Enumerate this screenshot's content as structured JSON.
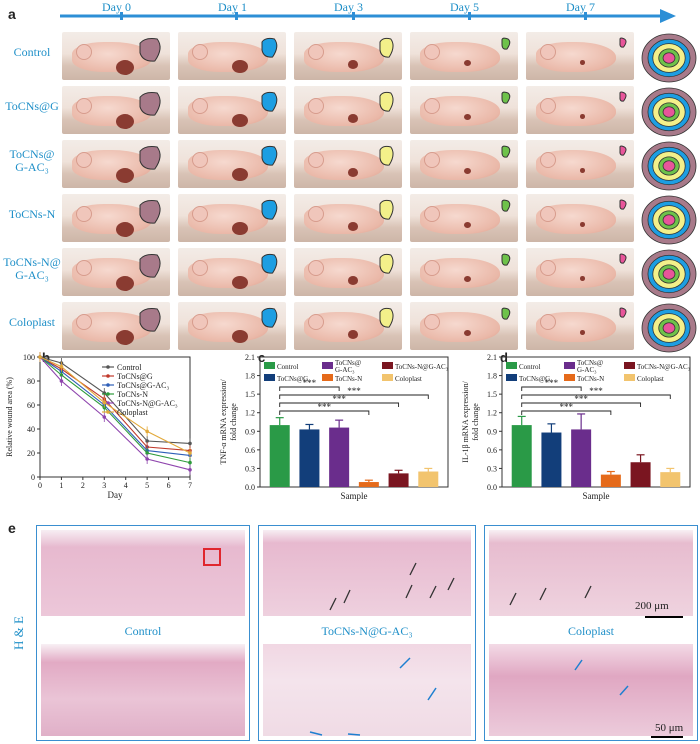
{
  "panels": {
    "a": "a",
    "b": "b",
    "c": "c",
    "d": "d",
    "e": "e"
  },
  "days": [
    "Day 0",
    "Day 1",
    "Day 3",
    "Day 5",
    "Day 7"
  ],
  "rows": [
    "Control",
    "ToCNs@G",
    "ToCNs@\nG-AC₃",
    "ToCNs-N",
    "ToCNs-N@\nG-AC₃",
    "Coloplast"
  ],
  "colors": {
    "control": "#2a9a47",
    "tocnsg": "#123e7a",
    "tocnsgac": "#6a2d8c",
    "tocnsn": "#e56a1a",
    "tocnsngac": "#7a1520",
    "coloplast": "#f2c46e",
    "accent": "#1e8fc8"
  },
  "trace_colors": {
    "day0": "#a87a8a",
    "day1": "#1d9ee2",
    "day3": "#f3f08a",
    "day5": "#6ec24a",
    "day7": "#e8559a"
  },
  "chart_data": [
    {
      "type": "line",
      "panel": "b",
      "ylabel": "Relative wound area (%)",
      "xlabel": "Day",
      "xlim": [
        0,
        7
      ],
      "ylim": [
        0,
        100
      ],
      "x": [
        0,
        1,
        3,
        5,
        7
      ],
      "xticks": [
        "0",
        "1",
        "2",
        "3",
        "4",
        "5",
        "6",
        "7"
      ],
      "yticks": [
        "0",
        "20",
        "40",
        "60",
        "80",
        "100"
      ],
      "series": [
        {
          "name": "Control",
          "values": [
            100,
            95,
            70,
            30,
            28
          ],
          "color": "#555555"
        },
        {
          "name": "ToCNs@G",
          "values": [
            100,
            90,
            65,
            25,
            22
          ],
          "color": "#c0392b"
        },
        {
          "name": "ToCNs@G-AC₃",
          "values": [
            100,
            88,
            60,
            22,
            18
          ],
          "color": "#2e5fb8"
        },
        {
          "name": "ToCNs-N",
          "values": [
            100,
            85,
            58,
            20,
            12
          ],
          "color": "#2e9b3b"
        },
        {
          "name": "ToCNs-N@G-AC₃",
          "values": [
            100,
            80,
            50,
            15,
            6
          ],
          "color": "#8e44ad"
        },
        {
          "name": "Coloplast",
          "values": [
            100,
            92,
            62,
            38,
            20
          ],
          "color": "#e2a93a"
        }
      ]
    },
    {
      "type": "bar",
      "panel": "c",
      "ylabel": "TNF-α mRNA expression/\nfold change",
      "xlabel": "Sample",
      "ylim": [
        0,
        2.0
      ],
      "yticks": [
        "0.0",
        "0.3",
        "0.6",
        "0.9",
        "1.2",
        "1.5",
        "1.8",
        "2.1"
      ],
      "categories": [
        "Control",
        "ToCNs@G",
        "ToCNs@G-AC₃",
        "ToCNs-N",
        "ToCNs-N@G-AC₃",
        "Coloplast"
      ],
      "values": [
        1.0,
        0.93,
        0.96,
        0.08,
        0.22,
        0.25
      ],
      "errors": [
        0.12,
        0.08,
        0.12,
        0.03,
        0.05,
        0.05
      ],
      "sig": "***"
    },
    {
      "type": "bar",
      "panel": "d",
      "ylabel": "IL-1β mRNA expression/\nfold change",
      "xlabel": "Sample",
      "ylim": [
        0,
        2.0
      ],
      "yticks": [
        "0.0",
        "0.3",
        "0.6",
        "0.9",
        "1.2",
        "1.5",
        "1.8",
        "2.1"
      ],
      "categories": [
        "Control",
        "ToCNs@G",
        "ToCNs@G-AC₃",
        "ToCNs-N",
        "ToCNs-N@G-AC₃",
        "Coloplast"
      ],
      "values": [
        1.0,
        0.88,
        0.93,
        0.2,
        0.4,
        0.24
      ],
      "errors": [
        0.14,
        0.14,
        0.25,
        0.05,
        0.12,
        0.06
      ],
      "sig": "***"
    }
  ],
  "legend_bar": {
    "control": "Control",
    "tocnsg": "ToCNs@G",
    "tocnsgac": "ToCNs@\nG-AC₃",
    "tocnsn": "ToCNs-N",
    "tocnsngac": "ToCNs-N@G-AC₃",
    "coloplast": "Coloplast"
  },
  "he": {
    "side": "H & E",
    "labels": [
      "Control",
      "ToCNs-N@G-AC₃",
      "Coloplast"
    ],
    "scale_top": "200 μm",
    "scale_bottom": "50 μm"
  }
}
